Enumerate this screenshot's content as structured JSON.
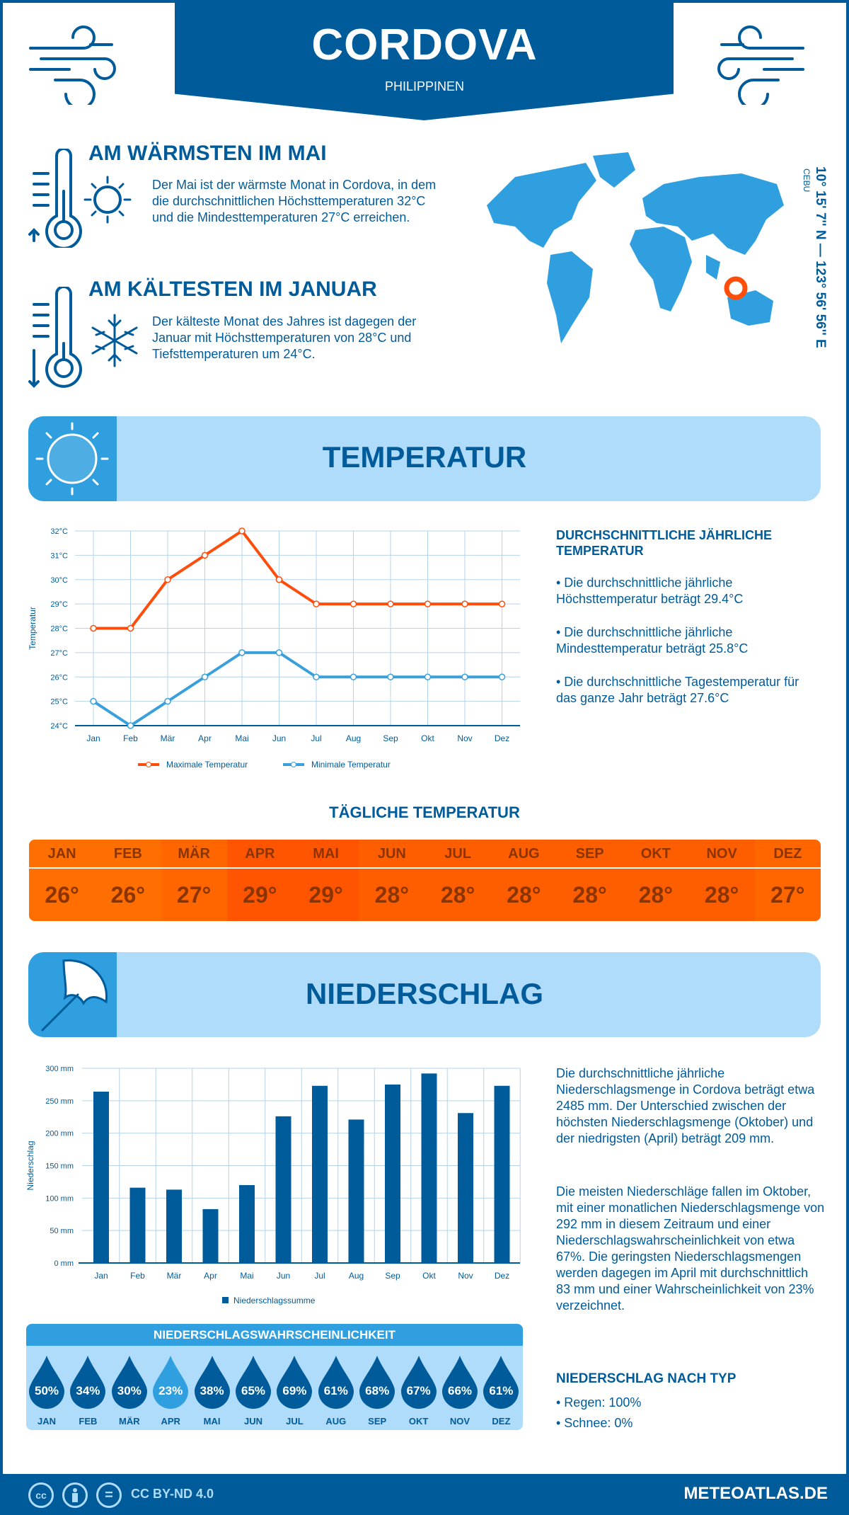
{
  "header": {
    "city": "CORDOVA",
    "country": "PHILIPPINEN"
  },
  "warmest": {
    "title": "AM WÄRMSTEN IM MAI",
    "text": "Der Mai ist der wärmste Monat in Cordova, in dem die durchschnittlichen Höchsttemperaturen 32°C und die Mindesttemperaturen 27°C erreichen."
  },
  "coldest": {
    "title": "AM KÄLTESTEN IM JANUAR",
    "text": "Der kälteste Monat des Jahres ist dagegen der Januar mit Höchsttemperaturen von 28°C und Tiefsttemperaturen um 24°C."
  },
  "location": {
    "region": "CEBU",
    "coordinates": "10° 15' 7'' N — 123° 56' 56'' E"
  },
  "temperature": {
    "title": "TEMPERATUR",
    "summary_title": "DURCHSCHNITTLICHE JÄHRLICHE TEMPERATUR",
    "bullets": [
      "• Die durchschnittliche jährliche Höchsttemperatur beträgt 29.4°C",
      "• Die durchschnittliche jährliche Mindesttemperatur beträgt 25.8°C",
      "• Die durchschnittliche Tagestemperatur für das ganze Jahr beträgt 27.6°C"
    ]
  },
  "daily": {
    "title": "TÄGLICHE TEMPERATUR",
    "months": [
      "JAN",
      "FEB",
      "MÄR",
      "APR",
      "MAI",
      "JUN",
      "JUL",
      "AUG",
      "SEP",
      "OKT",
      "NOV",
      "DEZ"
    ],
    "values": [
      "26°",
      "26°",
      "27°",
      "29°",
      "29°",
      "28°",
      "28°",
      "28°",
      "28°",
      "28°",
      "28°",
      "27°"
    ],
    "colors": [
      "#ff6e00",
      "#ff6e00",
      "#ff6600",
      "#ff5500",
      "#ff5500",
      "#ff5e00",
      "#ff5e00",
      "#ff5e00",
      "#ff5e00",
      "#ff5e00",
      "#ff5e00",
      "#ff6600"
    ]
  },
  "precipitation": {
    "title": "NIEDERSCHLAG",
    "text1": "Die durchschnittliche jährliche Niederschlagsmenge in Cordova beträgt etwa 2485 mm. Der Unterschied zwischen der höchsten Niederschlagsmenge (Oktober) und der niedrigsten (April) beträgt 209 mm.",
    "text2": "Die meisten Niederschläge fallen im Oktober, mit einer monatlichen Niederschlagsmenge von 292 mm in diesem Zeitraum und einer Niederschlagswahrscheinlichkeit von etwa 67%. Die geringsten Niederschlagsmengen werden dagegen im April mit durchschnittlich 83 mm und einer Wahrscheinlichkeit von 23% verzeichnet.",
    "type_title": "NIEDERSCHLAG NACH TYP",
    "types": [
      "• Regen: 100%",
      "• Schnee: 0%"
    ]
  },
  "probability": {
    "title": "NIEDERSCHLAGSWAHRSCHEINLICHKEIT",
    "months": [
      "JAN",
      "FEB",
      "MÄR",
      "APR",
      "MAI",
      "JUN",
      "JUL",
      "AUG",
      "SEP",
      "OKT",
      "NOV",
      "DEZ"
    ],
    "values": [
      "50%",
      "34%",
      "30%",
      "23%",
      "38%",
      "65%",
      "69%",
      "61%",
      "68%",
      "67%",
      "66%",
      "61%"
    ]
  },
  "footer": {
    "license": "CC BY-ND 4.0",
    "site": "METEOATLAS.DE",
    "cc": "cc",
    "eq": "="
  },
  "colors": {
    "primary": "#005b9a",
    "accent": "#2f9fdf",
    "light": "#aedcfa",
    "max": "#ff4e0c",
    "min": "#3aa0dc",
    "highlight_drop": "#2f9fdf"
  },
  "chart_data": [
    {
      "type": "line",
      "categories": [
        "Jan",
        "Feb",
        "Mär",
        "Apr",
        "Mai",
        "Jun",
        "Jul",
        "Aug",
        "Sep",
        "Okt",
        "Nov",
        "Dez"
      ],
      "series": [
        {
          "name": "Maximale Temperatur",
          "values": [
            28,
            28,
            30,
            31,
            32,
            30,
            29,
            29,
            29,
            29,
            29,
            29
          ]
        },
        {
          "name": "Minimale Temperatur",
          "values": [
            25,
            24,
            25,
            26,
            27,
            27,
            26,
            26,
            26,
            26,
            26,
            26
          ]
        }
      ],
      "ylabel": "Temperatur",
      "ylim": [
        24,
        32
      ],
      "yticks": [
        "24°C",
        "25°C",
        "26°C",
        "27°C",
        "28°C",
        "29°C",
        "30°C",
        "31°C",
        "32°C"
      ],
      "grid": true,
      "legend": "bottom"
    },
    {
      "type": "bar",
      "categories": [
        "Jan",
        "Feb",
        "Mär",
        "Apr",
        "Mai",
        "Jun",
        "Jul",
        "Aug",
        "Sep",
        "Okt",
        "Nov",
        "Dez"
      ],
      "series": [
        {
          "name": "Niederschlagssumme",
          "values": [
            264,
            116,
            113,
            83,
            120,
            226,
            273,
            221,
            275,
            292,
            231,
            273
          ]
        }
      ],
      "ylabel": "Niederschlag",
      "ylim": [
        0,
        300
      ],
      "yticks": [
        "0 mm",
        "50 mm",
        "100 mm",
        "150 mm",
        "200 mm",
        "250 mm",
        "300 mm"
      ],
      "grid": true,
      "legend": "bottom"
    }
  ]
}
